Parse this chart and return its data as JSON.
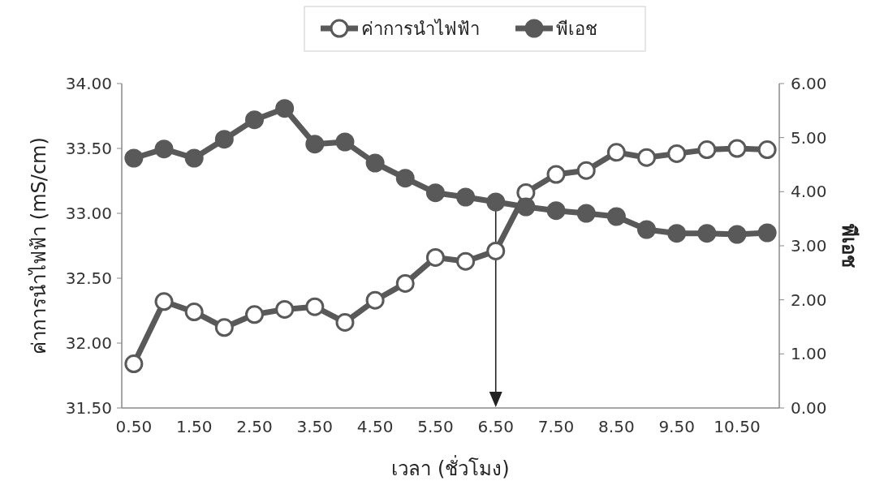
{
  "chart_data": {
    "type": "line",
    "xlabel": "เวลา (ชั่วโมง)",
    "ylabel": "ค่าการนำไฟฟ้า (mS/cm)",
    "y2label": "พีเอช",
    "x": [
      0.5,
      1.0,
      1.5,
      2.0,
      2.5,
      3.0,
      3.5,
      4.0,
      4.5,
      5.0,
      5.5,
      6.0,
      6.5,
      7.0,
      7.5,
      8.0,
      8.5,
      9.0,
      9.5,
      10.0,
      10.5,
      11.0
    ],
    "series": [
      {
        "name": "ค่าการนำไฟฟ้า",
        "color": "#595959",
        "values": [
          31.84,
          32.32,
          32.24,
          32.12,
          32.22,
          32.26,
          32.28,
          32.16,
          32.33,
          32.46,
          32.66,
          32.63,
          32.71,
          33.16,
          33.3,
          33.33,
          33.47,
          33.43,
          33.46,
          33.49,
          33.5,
          33.49
        ]
      },
      {
        "name": "พีเอช",
        "color": "#595959",
        "axis": "y2",
        "values": [
          4.62,
          4.79,
          4.62,
          4.97,
          5.33,
          5.54,
          4.88,
          4.92,
          4.53,
          4.25,
          3.98,
          3.9,
          3.81,
          3.72,
          3.65,
          3.6,
          3.54,
          3.3,
          3.23,
          3.23,
          3.21,
          3.24
        ]
      }
    ],
    "xlim": [
      0.3,
      11.2
    ],
    "xticks": [
      {
        "value": 0.5,
        "label": "0.50"
      },
      {
        "value": 1.5,
        "label": "1.50"
      },
      {
        "value": 2.5,
        "label": "2.50"
      },
      {
        "value": 3.5,
        "label": "3.50"
      },
      {
        "value": 4.5,
        "label": "4.50"
      },
      {
        "value": 5.5,
        "label": "5.50"
      },
      {
        "value": 6.5,
        "label": "6.50"
      },
      {
        "value": 7.5,
        "label": "7.50"
      },
      {
        "value": 8.5,
        "label": "8.50"
      },
      {
        "value": 9.5,
        "label": "9.50"
      },
      {
        "value": 10.5,
        "label": "10.50"
      }
    ],
    "ylim": [
      31.5,
      34.0
    ],
    "yticks": [
      {
        "value": 31.5,
        "label": "31.50"
      },
      {
        "value": 32.0,
        "label": "32.00"
      },
      {
        "value": 32.5,
        "label": "32.50"
      },
      {
        "value": 33.0,
        "label": "33.00"
      },
      {
        "value": 33.5,
        "label": "33.50"
      },
      {
        "value": 34.0,
        "label": "34.00"
      }
    ],
    "y2lim": [
      0,
      6
    ],
    "y2ticks": [
      {
        "value": 0,
        "label": "0.00"
      },
      {
        "value": 1,
        "label": "1.00"
      },
      {
        "value": 2,
        "label": "2.00"
      },
      {
        "value": 3,
        "label": "3.00"
      },
      {
        "value": 4,
        "label": "4.00"
      },
      {
        "value": 5,
        "label": "5.00"
      },
      {
        "value": 6,
        "label": "6.00"
      }
    ],
    "grid": false,
    "legend": "top",
    "marker": "circle",
    "line_style": "solid"
  }
}
